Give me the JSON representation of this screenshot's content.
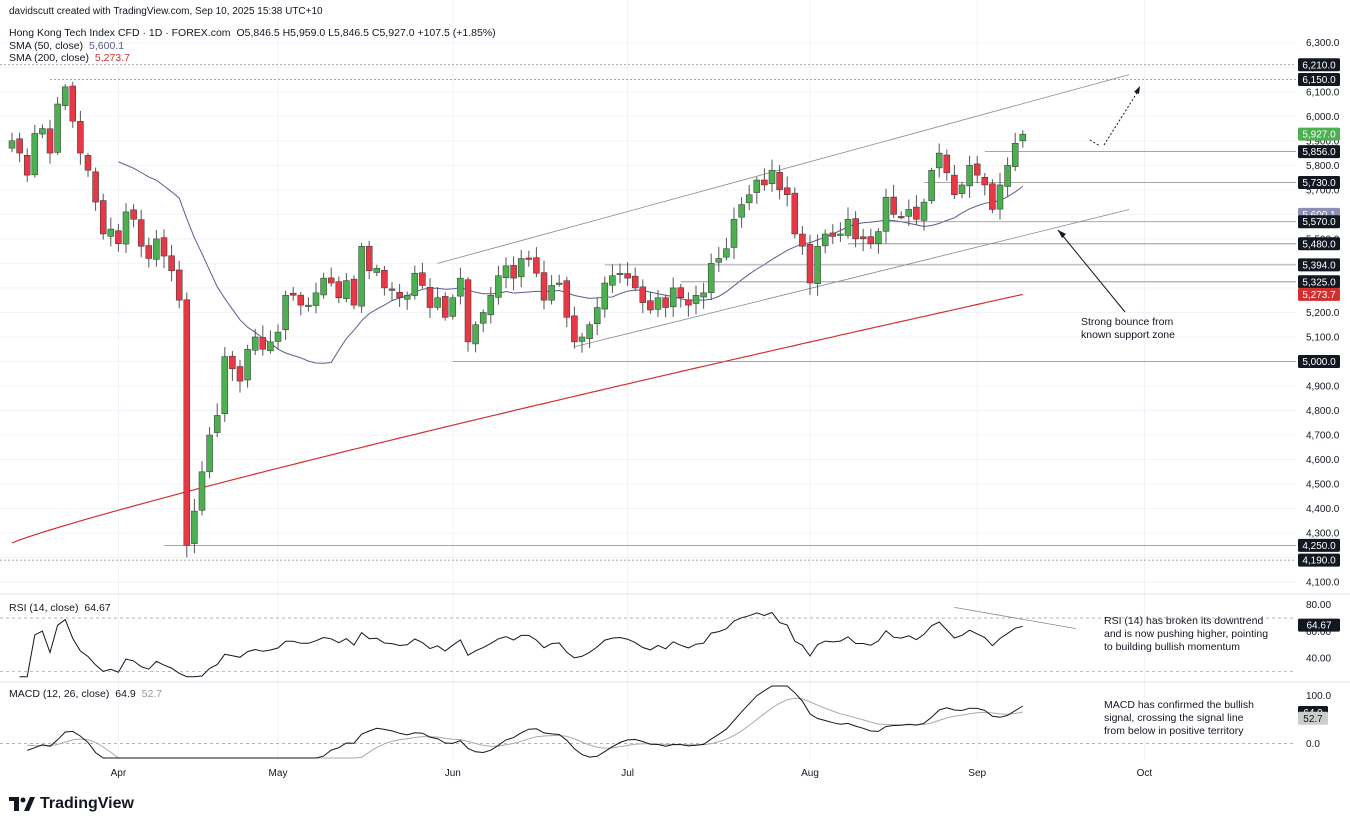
{
  "credit": "davidscutt created with TradingView.com, Sep 10, 2025 15:38 UTC+10",
  "header": {
    "symbol": "Hong Kong Tech Index CFD · 1D · FOREX.com",
    "ohlc": "O5,846.5 H5,959.0 L5,846.5 C5,927.0 +107.5 (+1.85%)",
    "sma50_label": "SMA (50, close)",
    "sma50_value": "5,600.1",
    "sma200_label": "SMA (200, close)",
    "sma200_value": "5,273.7"
  },
  "colors": {
    "up": "#4caf50",
    "down": "#e53946",
    "sma50": "#5b5c8f",
    "sma200": "#d32f2f",
    "grid": "#f0f3fa",
    "axis": "#b2b5be"
  },
  "chart_data": [
    {
      "type": "candlestick",
      "title": "Hong Kong Tech Index CFD · 1D · FOREX.com",
      "x_axis_labels": [
        "Apr",
        "May",
        "Jun",
        "Jul",
        "Aug",
        "Sep",
        "Oct"
      ],
      "y_ticks": [
        4100,
        4200,
        4300,
        4400,
        4500,
        4600,
        4700,
        4800,
        4900,
        5000,
        5100,
        5200,
        5300,
        5400,
        5500,
        5600,
        5700,
        5800,
        5900,
        6000,
        6100,
        6200,
        6300
      ],
      "ylim": [
        4060,
        6360
      ],
      "closes": [
        5900,
        5850,
        5760,
        5930,
        5950,
        5850,
        6050,
        6120,
        5980,
        5850,
        5780,
        5650,
        5520,
        5540,
        5480,
        5610,
        5580,
        5470,
        5420,
        5500,
        5430,
        5370,
        5250,
        4250,
        4390,
        4550,
        4700,
        4780,
        5020,
        4970,
        4920,
        5050,
        5100,
        5050,
        5080,
        5120,
        5270,
        5270,
        5230,
        5230,
        5280,
        5340,
        5320,
        5260,
        5330,
        5230,
        5470,
        5370,
        5380,
        5300,
        5290,
        5260,
        5270,
        5360,
        5310,
        5220,
        5260,
        5180,
        5260,
        5340,
        5080,
        5150,
        5200,
        5270,
        5350,
        5390,
        5340,
        5420,
        5420,
        5360,
        5250,
        5310,
        5320,
        5180,
        5080,
        5100,
        5150,
        5220,
        5320,
        5350,
        5360,
        5340,
        5300,
        5240,
        5210,
        5260,
        5220,
        5300,
        5260,
        5230,
        5270,
        5280,
        5400,
        5420,
        5460,
        5580,
        5640,
        5680,
        5740,
        5720,
        5780,
        5700,
        5680,
        5520,
        5470,
        5320,
        5470,
        5520,
        5510,
        5520,
        5580,
        5500,
        5500,
        5480,
        5530,
        5670,
        5600,
        5590,
        5620,
        5580,
        5650,
        5780,
        5850,
        5770,
        5680,
        5720,
        5800,
        5760,
        5720,
        5620,
        5720,
        5800,
        5890,
        5927
      ],
      "series": [
        {
          "name": "SMA (50, close)",
          "last": 5600.1
        },
        {
          "name": "SMA (200, close)",
          "last": 5273.7
        }
      ],
      "price_labels": [
        "6,210.0",
        "6,150.0",
        "5,927.0",
        "5,856.0",
        "5,730.0",
        "5,600.1",
        "5,570.0",
        "5,480.0",
        "5,394.0",
        "5,325.0",
        "5,273.7",
        "5,000.0",
        "4,250.0",
        "4,190.0"
      ],
      "annotation": "Strong bounce from\nknown support zone"
    },
    {
      "type": "line",
      "title": "RSI (14, close)",
      "value": "64.67",
      "y_ticks": [
        40,
        60,
        80
      ],
      "ylim": [
        25,
        85
      ],
      "last_value": "64.67",
      "annotation": "RSI (14) has broken its downtrend\nand is now pushing higher, pointing\nto building bullish momentum"
    },
    {
      "type": "line",
      "title": "MACD (12, 26, close)",
      "values_shown": [
        "64.9",
        "52.7"
      ],
      "y_ticks": [
        0,
        50,
        100
      ],
      "ylim": [
        -30,
        120
      ],
      "last_values": [
        "64.9",
        "52.7"
      ],
      "annotation": "MACD has confirmed the bullish\nsignal, crossing the signal line\nfrom below in positive territory"
    }
  ],
  "brand": "TradingView"
}
